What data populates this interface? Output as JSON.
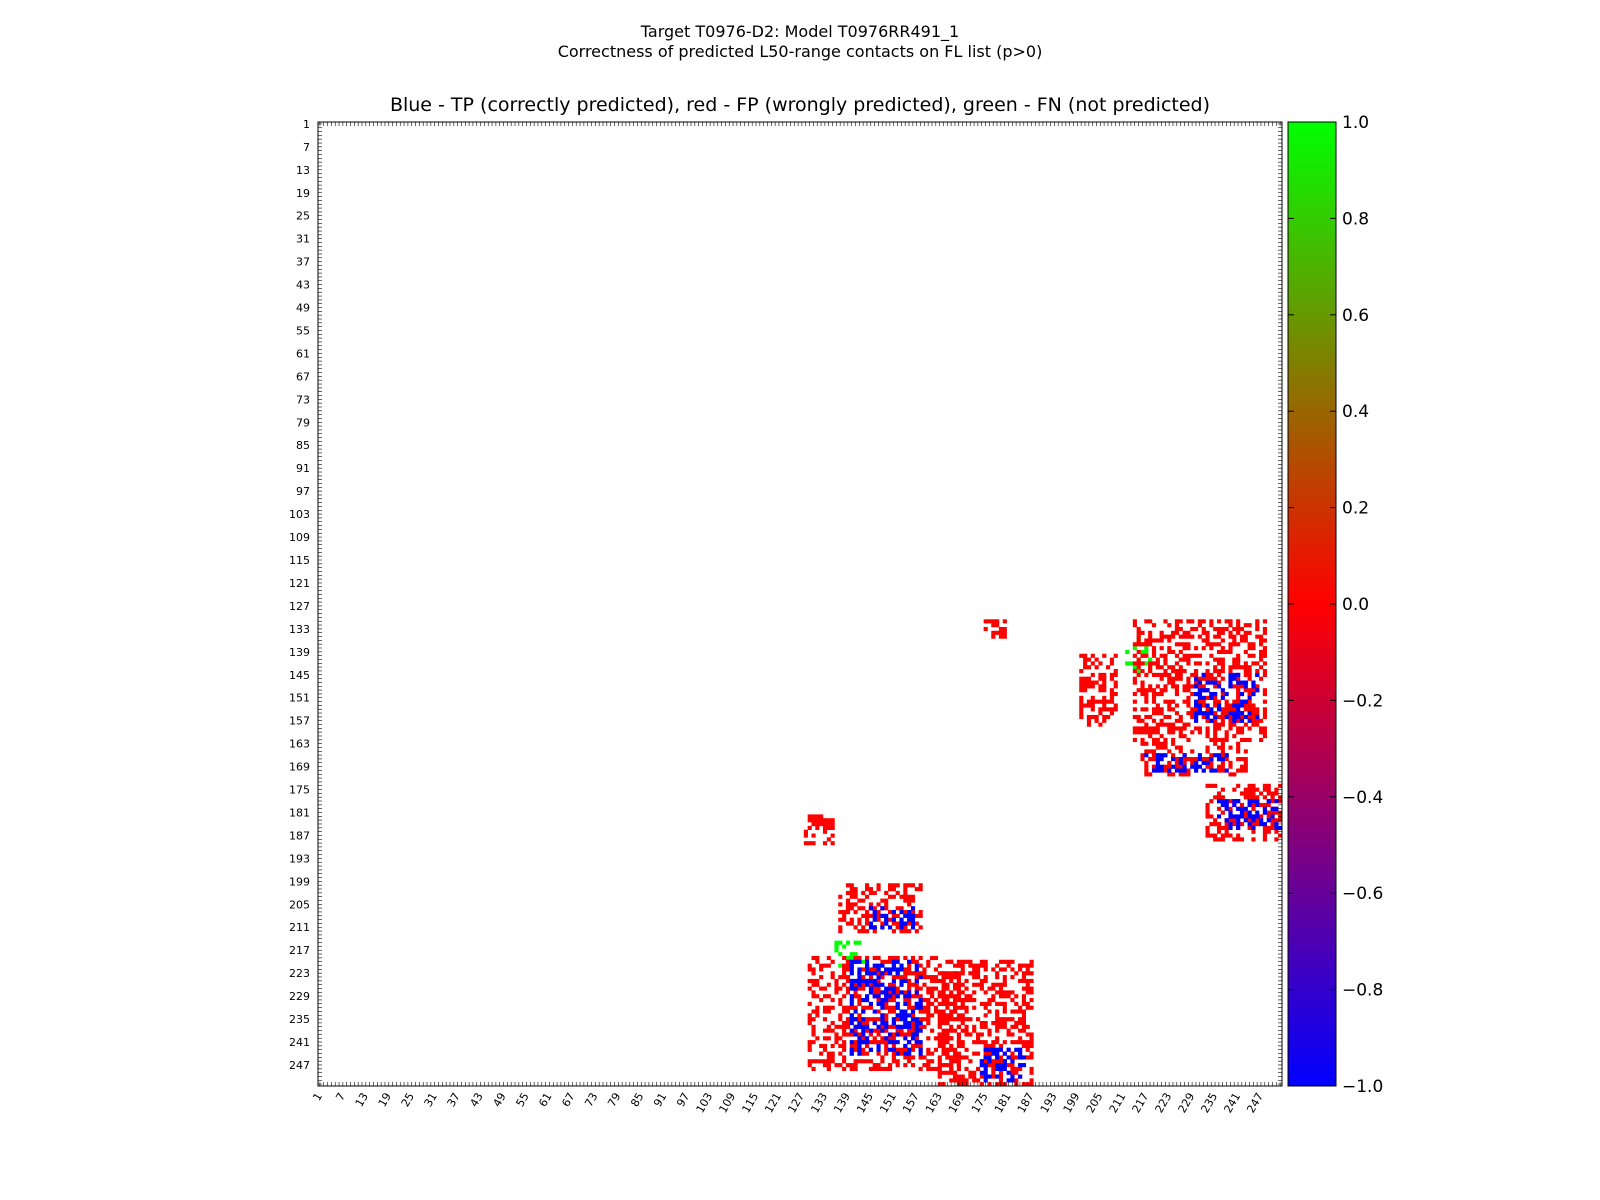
{
  "header": {
    "title_line1": "Target T0976-D2: Model T0976RR491_1",
    "title_line2": "Correctness of predicted L50-range contacts on FL list (p>0)"
  },
  "chart_data": {
    "type": "heatmap",
    "title": "Blue - TP (correctly predicted), red - FP (wrongly predicted), green - FN (not predicted)",
    "x_range": [
      1,
      252
    ],
    "y_range": [
      1,
      252
    ],
    "y_inverted": true,
    "x_tick_labels": [
      "1",
      "7",
      "13",
      "19",
      "25",
      "31",
      "37",
      "43",
      "49",
      "55",
      "61",
      "67",
      "73",
      "79",
      "85",
      "91",
      "97",
      "103",
      "109",
      "115",
      "121",
      "127",
      "133",
      "139",
      "145",
      "151",
      "157",
      "163",
      "169",
      "175",
      "181",
      "187",
      "193",
      "199",
      "205",
      "211",
      "217",
      "223",
      "229",
      "235",
      "241",
      "247"
    ],
    "y_tick_labels": [
      "1",
      "7",
      "13",
      "19",
      "25",
      "31",
      "37",
      "43",
      "49",
      "55",
      "61",
      "67",
      "73",
      "79",
      "85",
      "91",
      "97",
      "103",
      "109",
      "115",
      "121",
      "127",
      "133",
      "139",
      "145",
      "151",
      "157",
      "163",
      "169",
      "175",
      "181",
      "187",
      "193",
      "199",
      "205",
      "211",
      "217",
      "223",
      "229",
      "235",
      "241",
      "247"
    ],
    "colorbar": {
      "min": -1.0,
      "max": 1.0,
      "tick_labels": [
        "1.0",
        "0.8",
        "0.6",
        "0.4",
        "0.2",
        "0.0",
        "−0.2",
        "−0.4",
        "−0.6",
        "−0.8",
        "−1.0"
      ],
      "colors": {
        "tp": "#0000ff",
        "fp": "#ff0000",
        "fn": "#00ff00"
      }
    },
    "legend": {
      "tp": "Blue - TP (correctly predicted)",
      "fp": "red - FP (wrongly predicted)",
      "fn": "green - FN (not predicted)"
    },
    "clusters": [
      {
        "kind": "fp",
        "x": [
          175,
          180
        ],
        "y": [
          131,
          135
        ]
      },
      {
        "kind": "fp",
        "x": [
          200,
          209
        ],
        "y": [
          140,
          158
        ]
      },
      {
        "kind": "fn",
        "x": [
          212,
          218
        ],
        "y": [
          135,
          144
        ]
      },
      {
        "kind": "fp",
        "x": [
          214,
          248
        ],
        "y": [
          131,
          162
        ]
      },
      {
        "kind": "tp",
        "x": [
          230,
          246
        ],
        "y": [
          145,
          157
        ]
      },
      {
        "kind": "fp",
        "x": [
          216,
          243
        ],
        "y": [
          163,
          171
        ]
      },
      {
        "kind": "tp",
        "x": [
          217,
          238
        ],
        "y": [
          166,
          170
        ]
      },
      {
        "kind": "fp",
        "x": [
          233,
          252
        ],
        "y": [
          174,
          188
        ]
      },
      {
        "kind": "tp",
        "x": [
          236,
          252
        ],
        "y": [
          178,
          185
        ]
      },
      {
        "kind": "fp",
        "x": [
          128,
          135
        ],
        "y": [
          182,
          189
        ]
      },
      {
        "kind": "fp",
        "x": [
          137,
          158
        ],
        "y": [
          200,
          212
        ]
      },
      {
        "kind": "tp",
        "x": [
          145,
          156
        ],
        "y": [
          206,
          211
        ]
      },
      {
        "kind": "fn",
        "x": [
          135,
          143
        ],
        "y": [
          215,
          221
        ]
      },
      {
        "kind": "fp",
        "x": [
          129,
          168
        ],
        "y": [
          219,
          248
        ]
      },
      {
        "kind": "tp",
        "x": [
          140,
          158
        ],
        "y": [
          220,
          244
        ]
      },
      {
        "kind": "fp",
        "x": [
          163,
          187
        ],
        "y": [
          220,
          252
        ]
      },
      {
        "kind": "tp",
        "x": [
          174,
          185
        ],
        "y": [
          243,
          251
        ]
      }
    ]
  }
}
